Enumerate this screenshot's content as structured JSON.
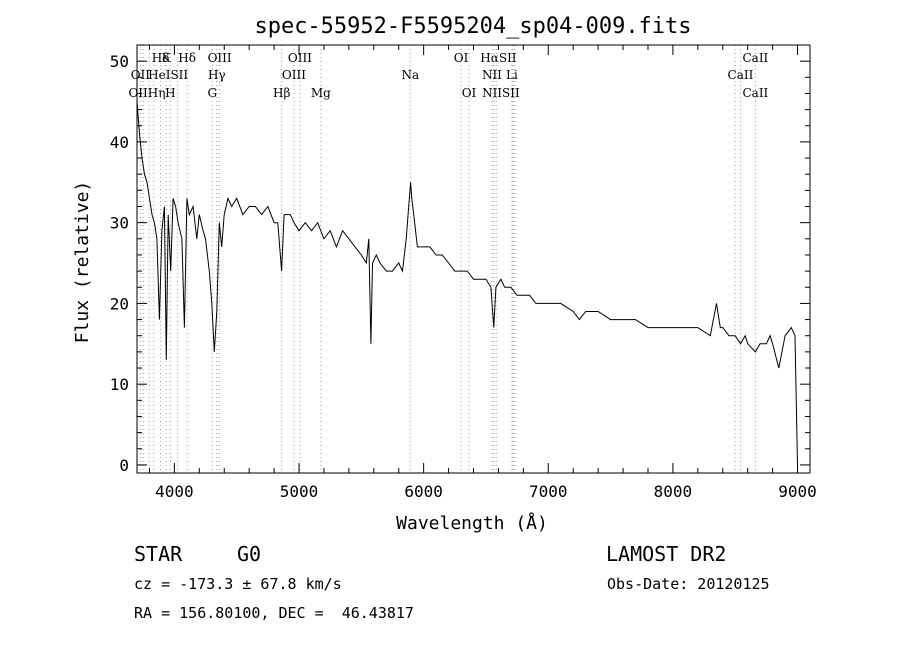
{
  "chart_data": {
    "type": "line",
    "title": "spec-55952-F5595204_sp04-009.fits",
    "xlabel": "Wavelength (Å)",
    "ylabel": "Flux (relative)",
    "xlim": [
      3700,
      9100
    ],
    "ylim": [
      -1,
      52
    ],
    "xticks": [
      4000,
      5000,
      6000,
      7000,
      8000,
      9000
    ],
    "yticks": [
      0,
      10,
      20,
      30,
      40,
      50
    ],
    "x_tick_labels": [
      "4000",
      "5000",
      "6000",
      "7000",
      "8000",
      "9000"
    ],
    "y_tick_labels": [
      "0",
      "10",
      "20",
      "30",
      "40",
      "50"
    ],
    "grid": false,
    "series": [
      {
        "x": [
          3700,
          3720,
          3740,
          3760,
          3780,
          3800,
          3820,
          3840,
          3860,
          3880,
          3900,
          3920,
          3935,
          3950,
          3970,
          3990,
          4010,
          4030,
          4060,
          4080,
          4100,
          4120,
          4150,
          4180,
          4200,
          4230,
          4250,
          4280,
          4300,
          4320,
          4340,
          4360,
          4380,
          4400,
          4430,
          4460,
          4500,
          4550,
          4600,
          4650,
          4700,
          4750,
          4800,
          4830,
          4860,
          4880,
          4900,
          4930,
          4960,
          5000,
          5050,
          5100,
          5150,
          5200,
          5250,
          5300,
          5350,
          5400,
          5450,
          5500,
          5540,
          5560,
          5577,
          5590,
          5620,
          5650,
          5700,
          5750,
          5800,
          5830,
          5860,
          5880,
          5895,
          5905,
          5920,
          5950,
          6000,
          6050,
          6100,
          6150,
          6200,
          6250,
          6300,
          6350,
          6400,
          6450,
          6500,
          6540,
          6563,
          6580,
          6620,
          6650,
          6700,
          6750,
          6800,
          6850,
          6900,
          7000,
          7100,
          7200,
          7250,
          7300,
          7400,
          7500,
          7600,
          7700,
          7800,
          7900,
          8000,
          8100,
          8200,
          8300,
          8350,
          8380,
          8400,
          8450,
          8500,
          8542,
          8580,
          8600,
          8662,
          8700,
          8750,
          8780,
          8800,
          8850,
          8900,
          8950,
          8980,
          9000
        ],
        "y": [
          45,
          41,
          38,
          36,
          35,
          33,
          31,
          30,
          28,
          18,
          29,
          32,
          13,
          31,
          24,
          33,
          32,
          30,
          28,
          17,
          33,
          31,
          32,
          28,
          31,
          29,
          28,
          24,
          20,
          14,
          19,
          30,
          27,
          31,
          33,
          32,
          33,
          31,
          32,
          32,
          31,
          32,
          30,
          30,
          24,
          31,
          31,
          31,
          30,
          29,
          30,
          29,
          30,
          28,
          29,
          27,
          29,
          28,
          27,
          26,
          25,
          28,
          15,
          25,
          26,
          25,
          24,
          24,
          25,
          24,
          28,
          32,
          35,
          33,
          31,
          27,
          27,
          27,
          26,
          26,
          25,
          24,
          24,
          24,
          23,
          23,
          23,
          22,
          17,
          22,
          23,
          22,
          22,
          21,
          21,
          21,
          20,
          20,
          20,
          19,
          18,
          19,
          19,
          18,
          18,
          18,
          17,
          17,
          17,
          17,
          17,
          16,
          20,
          17,
          17,
          16,
          16,
          15,
          16,
          15,
          14,
          15,
          15,
          16,
          15,
          12,
          16,
          17,
          16,
          0
        ]
      }
    ],
    "line_labels": [
      {
        "text": "Hδ",
        "x": 3889,
        "row": 1
      },
      {
        "text": "K",
        "x": 3934,
        "row": 1
      },
      {
        "text": "Hδ",
        "x": 4102,
        "row": 1
      },
      {
        "text": "OIII",
        "x": 4363,
        "row": 1
      },
      {
        "text": "OIII",
        "x": 5007,
        "row": 1
      },
      {
        "text": "OI",
        "x": 6300,
        "row": 1
      },
      {
        "text": "HαSII",
        "x": 6600,
        "row": 1
      },
      {
        "text": "CaII",
        "x": 8662,
        "row": 1
      },
      {
        "text": "OII",
        "x": 3727,
        "row": 2
      },
      {
        "text": "HeISII",
        "x": 3950,
        "row": 2
      },
      {
        "text": "Hγ",
        "x": 4340,
        "row": 2
      },
      {
        "text": "OIII",
        "x": 4959,
        "row": 2
      },
      {
        "text": "Na",
        "x": 5893,
        "row": 2
      },
      {
        "text": "NII",
        "x": 6548,
        "row": 2
      },
      {
        "text": "Li",
        "x": 6708,
        "row": 2
      },
      {
        "text": "CaII",
        "x": 8542,
        "row": 2
      },
      {
        "text": "OIIHη",
        "x": 3780,
        "row": 3
      },
      {
        "text": "H",
        "x": 3968,
        "row": 3
      },
      {
        "text": "G",
        "x": 4304,
        "row": 3
      },
      {
        "text": "Hβ",
        "x": 4861,
        "row": 3
      },
      {
        "text": "Mg",
        "x": 5175,
        "row": 3
      },
      {
        "text": "OI",
        "x": 6364,
        "row": 3
      },
      {
        "text": "NIISII",
        "x": 6620,
        "row": 3
      },
      {
        "text": "CaII",
        "x": 8662,
        "row": 3
      }
    ],
    "line_markers": [
      3727,
      3750,
      3798,
      3835,
      3889,
      3934,
      3968,
      4026,
      4102,
      4304,
      4340,
      4363,
      4861,
      4959,
      5007,
      5175,
      5893,
      6300,
      6364,
      6548,
      6563,
      6583,
      6708,
      6717,
      6731,
      8498,
      8542,
      8662
    ]
  },
  "info": {
    "object_class": "STAR",
    "subclass": "G0",
    "survey": "LAMOST DR2",
    "cz": "cz = -173.3 ± 67.8 km/s",
    "obs_date": "Obs-Date: 20120125",
    "coords": "RA = 156.80100, DEC =  46.43817"
  },
  "colors": {
    "spectrum": "#000000",
    "marker_line": "#d08080",
    "axes": "#000000"
  }
}
